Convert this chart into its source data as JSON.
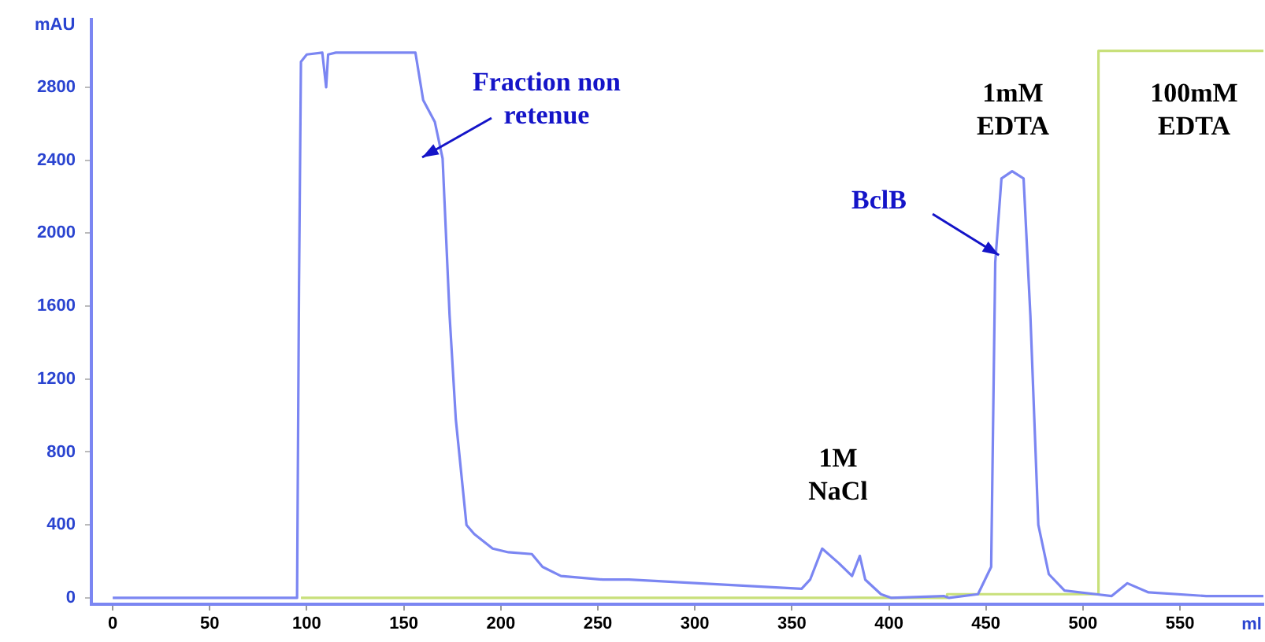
{
  "chart_data": {
    "type": "line",
    "xlabel": "ml",
    "ylabel": "mAU",
    "xlim": [
      -11,
      593
    ],
    "ylim": [
      -35,
      3170
    ],
    "xticks": [
      0,
      50,
      100,
      150,
      200,
      250,
      300,
      350,
      400,
      450,
      500,
      550
    ],
    "yticks": [
      0,
      400,
      800,
      1200,
      1600,
      2000,
      2400,
      2800
    ],
    "grid": false,
    "legend": false,
    "marker": "none",
    "line_style": "solid",
    "series": [
      {
        "color": "#7b86f2",
        "x": [
          0,
          95,
          96,
          97,
          100,
          108,
          110,
          111,
          115,
          156,
          160,
          166,
          170,
          173.6,
          176.8,
          182.3,
          186.3,
          195.8,
          203.9,
          216,
          221.5,
          231,
          252.6,
          266,
          355,
          359.4,
          365.6,
          374.2,
          381,
          385,
          387.8,
          395.9,
          401.3,
          428.3,
          431,
          445.9,
          452.7,
          454.8,
          458,
          463.5,
          469.4,
          472.9,
          477,
          482.4,
          490.5,
          506.7,
          514.8,
          522.9,
          533.8,
          563.5,
          593
        ],
        "values": [
          0,
          0,
          1700,
          2940,
          2980,
          2990,
          2800,
          2980,
          2990,
          2990,
          2730,
          2610,
          2410,
          1550,
          980,
          400,
          350,
          270,
          250,
          240,
          170,
          120,
          100,
          100,
          50,
          100,
          270,
          190,
          120,
          230,
          100,
          20,
          0,
          10,
          0,
          20,
          170,
          1840,
          2300,
          2340,
          2300,
          1550,
          400,
          130,
          40,
          20,
          10,
          80,
          30,
          10,
          10
        ]
      },
      {
        "color": "#c8e07a",
        "x": [
          97,
          430,
          430,
          508,
          508,
          593
        ],
        "values": [
          0,
          0,
          20,
          20,
          3000,
          3000
        ]
      }
    ],
    "annotations": [
      "Fraction non\nretenue",
      {
        "text": "BclB",
        "x": 456.7,
        "y": 1880
      },
      "1M\nNaCl",
      "1mM\nEDTA",
      "100mM\nEDTA"
    ]
  }
}
